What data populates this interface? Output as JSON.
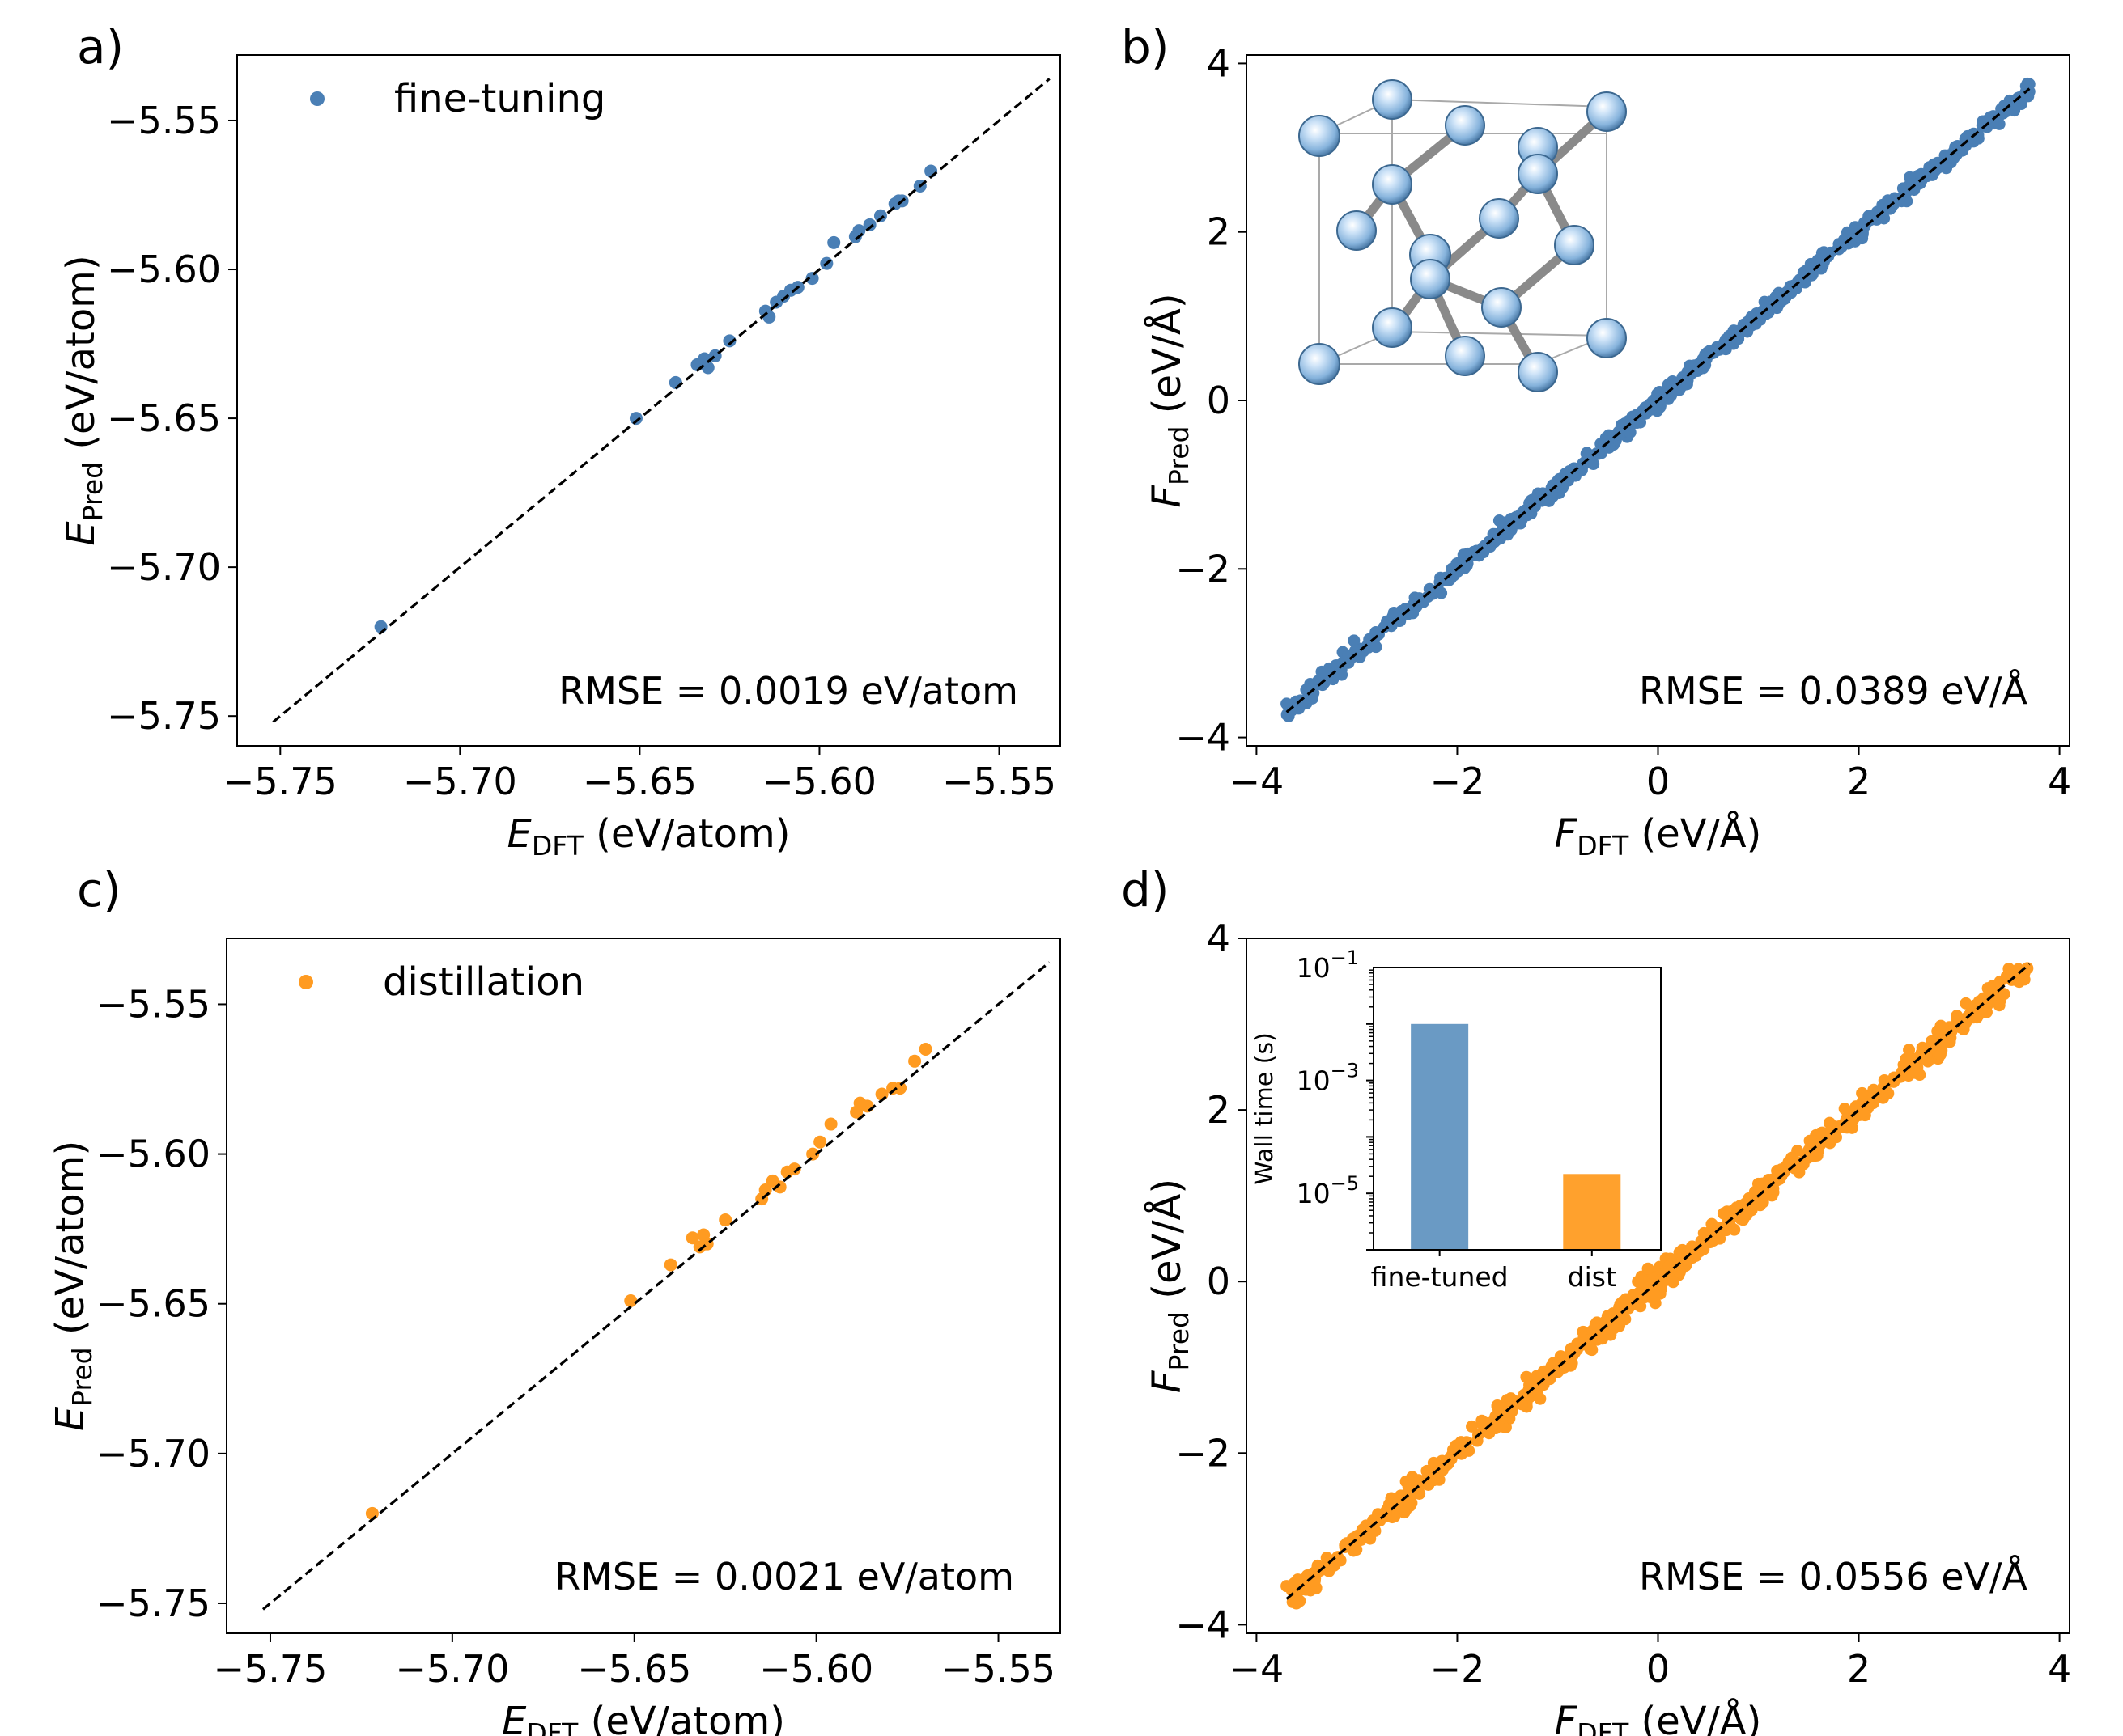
{
  "chart_data": [
    {
      "id": "a",
      "type": "scatter",
      "panel_label": "a)",
      "xlabel": {
        "symbol": "E",
        "sub": "DFT",
        "unit": " (eV/atom)"
      },
      "ylabel": {
        "symbol": "E",
        "sub": "Pred",
        "unit": " (eV/atom)"
      },
      "xlim": [
        -5.762,
        -5.533
      ],
      "ylim": [
        -5.76,
        -5.528
      ],
      "xticks": [
        {
          "v": -5.75,
          "label": "−5.75"
        },
        {
          "v": -5.7,
          "label": "−5.70"
        },
        {
          "v": -5.65,
          "label": "−5.65"
        },
        {
          "v": -5.6,
          "label": "−5.60"
        },
        {
          "v": -5.55,
          "label": "−5.55"
        }
      ],
      "yticks": [
        {
          "v": -5.75,
          "label": "−5.75"
        },
        {
          "v": -5.7,
          "label": "−5.70"
        },
        {
          "v": -5.65,
          "label": "−5.65"
        },
        {
          "v": -5.6,
          "label": "−5.60"
        },
        {
          "v": -5.55,
          "label": "−5.55"
        }
      ],
      "legend": "fine-tuning",
      "annotation": "RMSE = 0.0019 eV/atom",
      "color": "#4a7fb5",
      "dashed_line": [
        -5.752,
        -5.536
      ],
      "points": [
        [
          -5.722,
          -5.72
        ],
        [
          -5.651,
          -5.65
        ],
        [
          -5.64,
          -5.638
        ],
        [
          -5.634,
          -5.632
        ],
        [
          -5.632,
          -5.63
        ],
        [
          -5.631,
          -5.633
        ],
        [
          -5.629,
          -5.629
        ],
        [
          -5.625,
          -5.624
        ],
        [
          -5.615,
          -5.614
        ],
        [
          -5.614,
          -5.616
        ],
        [
          -5.612,
          -5.611
        ],
        [
          -5.61,
          -5.609
        ],
        [
          -5.608,
          -5.607
        ],
        [
          -5.606,
          -5.606
        ],
        [
          -5.602,
          -5.603
        ],
        [
          -5.598,
          -5.598
        ],
        [
          -5.596,
          -5.591
        ],
        [
          -5.59,
          -5.589
        ],
        [
          -5.589,
          -5.587
        ],
        [
          -5.586,
          -5.585
        ],
        [
          -5.583,
          -5.582
        ],
        [
          -5.579,
          -5.578
        ],
        [
          -5.578,
          -5.577
        ],
        [
          -5.577,
          -5.577
        ],
        [
          -5.572,
          -5.572
        ],
        [
          -5.569,
          -5.567
        ]
      ]
    },
    {
      "id": "b",
      "type": "scatter",
      "panel_label": "b)",
      "xlabel": {
        "symbol": "F",
        "sub": "DFT",
        "unit": " (eV/Å)"
      },
      "ylabel": {
        "symbol": "F",
        "sub": "Pred",
        "unit": " (eV/Å)"
      },
      "xlim": [
        -4.1,
        4.1
      ],
      "ylim": [
        -4.1,
        4.1
      ],
      "xticks": [
        {
          "v": -4,
          "label": "−4"
        },
        {
          "v": -2,
          "label": "−2"
        },
        {
          "v": 0,
          "label": "0"
        },
        {
          "v": 2,
          "label": "2"
        },
        {
          "v": 4,
          "label": "4"
        }
      ],
      "yticks": [
        {
          "v": -4,
          "label": "−4"
        },
        {
          "v": -2,
          "label": "−2"
        },
        {
          "v": 0,
          "label": "0"
        },
        {
          "v": 2,
          "label": "2"
        },
        {
          "v": 4,
          "label": "4"
        }
      ],
      "annotation": "RMSE = 0.0389 eV/Å",
      "color": "#4a7fb5",
      "dashed_line": [
        -3.7,
        3.7
      ],
      "force_cloud": {
        "n": 700,
        "xmin": -3.7,
        "xmax": 3.7,
        "spread": 0.05,
        "seed": 11
      },
      "points": [
        [
          -3.7,
          -3.6
        ],
        [
          -3.35,
          -3.22
        ],
        [
          -3.0,
          -2.97
        ],
        [
          3.4,
          3.28
        ],
        [
          3.68,
          3.76
        ],
        [
          2.55,
          2.5
        ],
        [
          1.45,
          1.52
        ]
      ]
    },
    {
      "id": "c",
      "type": "scatter",
      "panel_label": "c)",
      "xlabel": {
        "symbol": "E",
        "sub": "DFT",
        "unit": " (eV/atom)"
      },
      "ylabel": {
        "symbol": "E",
        "sub": "Pred",
        "unit": " (eV/atom)"
      },
      "xlim": [
        -5.762,
        -5.533
      ],
      "ylim": [
        -5.76,
        -5.528
      ],
      "xticks": [
        {
          "v": -5.75,
          "label": "−5.75"
        },
        {
          "v": -5.7,
          "label": "−5.70"
        },
        {
          "v": -5.65,
          "label": "−5.65"
        },
        {
          "v": -5.6,
          "label": "−5.60"
        },
        {
          "v": -5.55,
          "label": "−5.55"
        }
      ],
      "yticks": [
        {
          "v": -5.75,
          "label": "−5.75"
        },
        {
          "v": -5.7,
          "label": "−5.70"
        },
        {
          "v": -5.65,
          "label": "−5.65"
        },
        {
          "v": -5.6,
          "label": "−5.60"
        },
        {
          "v": -5.55,
          "label": "−5.55"
        }
      ],
      "legend": "distillation",
      "annotation": "RMSE = 0.0021 eV/atom",
      "color": "#ff9b21",
      "dashed_line": [
        -5.752,
        -5.536
      ],
      "points": [
        [
          -5.722,
          -5.72
        ],
        [
          -5.651,
          -5.649
        ],
        [
          -5.64,
          -5.637
        ],
        [
          -5.634,
          -5.628
        ],
        [
          -5.632,
          -5.631
        ],
        [
          -5.631,
          -5.627
        ],
        [
          -5.63,
          -5.63
        ],
        [
          -5.625,
          -5.622
        ],
        [
          -5.615,
          -5.615
        ],
        [
          -5.614,
          -5.612
        ],
        [
          -5.612,
          -5.609
        ],
        [
          -5.61,
          -5.611
        ],
        [
          -5.608,
          -5.606
        ],
        [
          -5.606,
          -5.605
        ],
        [
          -5.601,
          -5.6
        ],
        [
          -5.599,
          -5.596
        ],
        [
          -5.596,
          -5.59
        ],
        [
          -5.589,
          -5.586
        ],
        [
          -5.588,
          -5.583
        ],
        [
          -5.586,
          -5.584
        ],
        [
          -5.582,
          -5.58
        ],
        [
          -5.579,
          -5.578
        ],
        [
          -5.577,
          -5.578
        ],
        [
          -5.573,
          -5.569
        ],
        [
          -5.57,
          -5.565
        ]
      ]
    },
    {
      "id": "d",
      "type": "scatter",
      "panel_label": "d)",
      "xlabel": {
        "symbol": "F",
        "sub": "DFT",
        "unit": " (eV/Å)"
      },
      "ylabel": {
        "symbol": "F",
        "sub": "Pred",
        "unit": " (eV/Å)"
      },
      "xlim": [
        -4.1,
        4.1
      ],
      "ylim": [
        -4.1,
        4.0
      ],
      "xticks": [
        {
          "v": -4,
          "label": "−4"
        },
        {
          "v": -2,
          "label": "−2"
        },
        {
          "v": 0,
          "label": "0"
        },
        {
          "v": 2,
          "label": "2"
        },
        {
          "v": 4,
          "label": "4"
        }
      ],
      "yticks": [
        {
          "v": -4,
          "label": "−4"
        },
        {
          "v": -2,
          "label": "−2"
        },
        {
          "v": 0,
          "label": "0"
        },
        {
          "v": 2,
          "label": "2"
        },
        {
          "v": 4,
          "label": "4"
        }
      ],
      "annotation": "RMSE = 0.0556 eV/Å",
      "color": "#ff9b21",
      "dashed_line": [
        -3.7,
        3.7
      ],
      "force_cloud": {
        "n": 700,
        "xmin": -3.7,
        "xmax": 3.7,
        "spread": 0.075,
        "seed": 29
      },
      "points": [
        [
          -3.7,
          -3.55
        ],
        [
          -3.3,
          -3.22
        ],
        [
          -3.1,
          -3.05
        ],
        [
          3.4,
          3.22
        ],
        [
          3.65,
          3.6
        ],
        [
          3.65,
          3.52
        ],
        [
          2.5,
          2.7
        ],
        [
          -0.2,
          0.0
        ],
        [
          -0.1,
          0.15
        ]
      ],
      "inset": {
        "type": "bar",
        "yscale": "log",
        "ylim_log10": [
          -6,
          -1
        ],
        "ylabel": "Wall time (s)",
        "yticks": [
          {
            "exp": -1,
            "base": "10",
            "sup": "−1"
          },
          {
            "exp": -3,
            "base": "10",
            "sup": "−3"
          },
          {
            "exp": -5,
            "base": "10",
            "sup": "−5"
          }
        ],
        "categories": [
          "fine-tuned",
          "dist"
        ],
        "values": [
          0.01,
          2.2e-05
        ],
        "colors": [
          "#6a9ac4",
          "#ffa12d"
        ]
      }
    }
  ]
}
